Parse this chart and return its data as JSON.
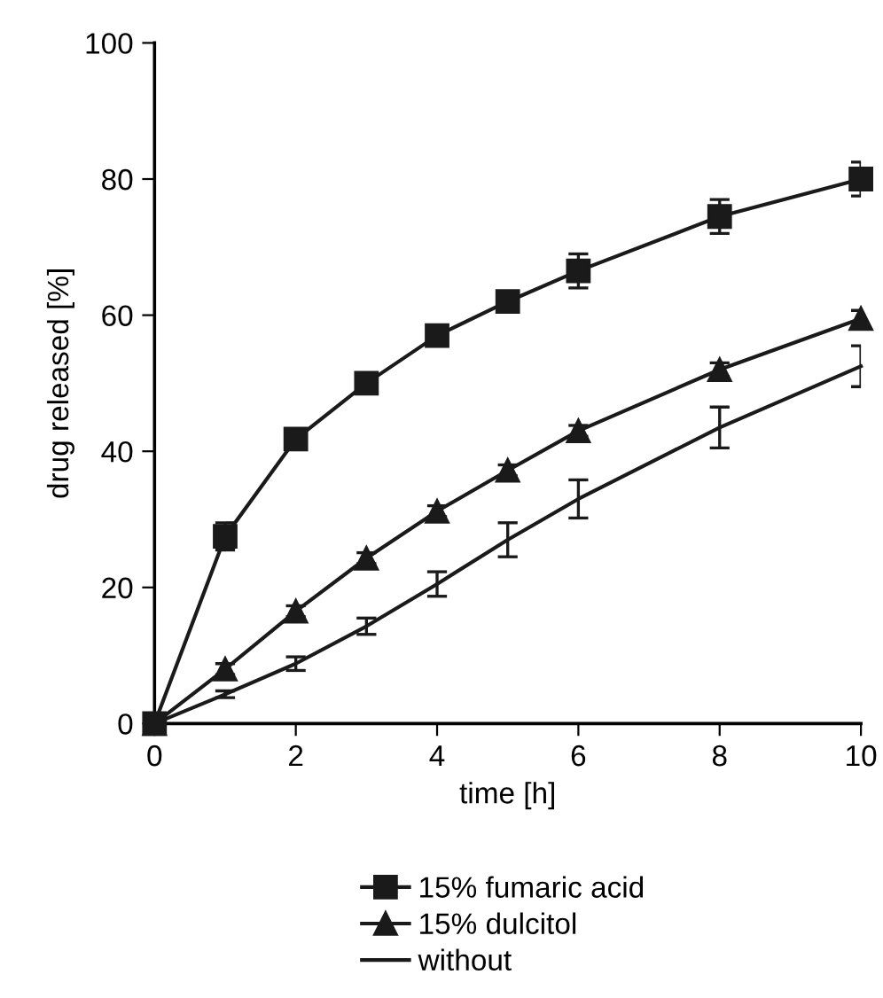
{
  "chart_data": {
    "type": "line",
    "xlabel": "time [h]",
    "ylabel": "drug released [%]",
    "x": [
      0,
      1,
      2,
      3,
      4,
      5,
      6,
      8,
      10
    ],
    "series": [
      {
        "name": "15% fumaric acid",
        "color": "#1a1a1a",
        "marker": "square",
        "values": [
          0,
          27.5,
          41.8,
          50,
          57,
          62,
          66.5,
          74.5,
          80
        ],
        "errors": [
          null,
          2,
          1.5,
          1,
          1.5,
          1,
          2.5,
          2.5,
          2.5
        ]
      },
      {
        "name": "15% dulcitol",
        "color": "#1a1a1a",
        "marker": "triangle",
        "values": [
          0,
          8,
          16.5,
          24.3,
          31.2,
          37.2,
          43,
          52,
          59.5
        ],
        "errors": [
          null,
          0.8,
          0.8,
          0.8,
          0.8,
          0.8,
          0.8,
          1,
          1.2
        ]
      },
      {
        "name": "without",
        "color": "#1a1a1a",
        "marker": "none",
        "values": [
          0,
          4.3,
          8.8,
          14.3,
          20.5,
          27,
          33,
          43.5,
          52.5
        ],
        "errors": [
          null,
          0.5,
          1,
          1.2,
          1.8,
          2.5,
          2.8,
          3,
          3
        ]
      }
    ],
    "xlim": [
      0,
      10
    ],
    "xticks": [
      0,
      2,
      4,
      6,
      8,
      10
    ],
    "ylim": [
      0,
      100
    ],
    "yticks": [
      0,
      20,
      40,
      60,
      80,
      100
    ],
    "grid": false,
    "legend": "bottom",
    "line_style": "solid"
  }
}
